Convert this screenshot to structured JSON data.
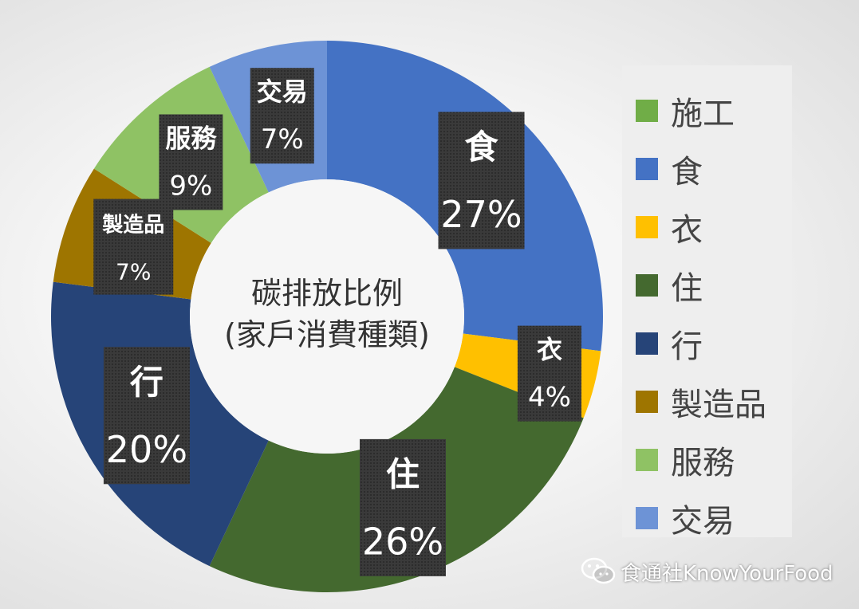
{
  "chart_data": {
    "type": "pie",
    "variant": "donut",
    "title": "碳排放比例\n(家戶消費種類)",
    "categories": [
      "施工",
      "食",
      "衣",
      "住",
      "行",
      "製造品",
      "服務",
      "交易"
    ],
    "values": [
      0,
      27,
      4,
      26,
      20,
      7,
      9,
      7
    ],
    "value_labels": [
      "",
      "27%",
      "4%",
      "26%",
      "20%",
      "7%",
      "9%",
      "7%"
    ],
    "colors": [
      "#70ad47",
      "#4472c4",
      "#ffc000",
      "#44692f",
      "#264478",
      "#9e7500",
      "#8fc264",
      "#6d93d6"
    ],
    "legend_position": "right"
  },
  "legend": {
    "items": [
      {
        "label": "施工",
        "color": "#70ad47"
      },
      {
        "label": "食",
        "color": "#4472c4"
      },
      {
        "label": "衣",
        "color": "#ffc000"
      },
      {
        "label": "住",
        "color": "#44692f"
      },
      {
        "label": "行",
        "color": "#264478"
      },
      {
        "label": "製造品",
        "color": "#9e7500"
      },
      {
        "label": "服務",
        "color": "#8fc264"
      },
      {
        "label": "交易",
        "color": "#6d93d6"
      }
    ]
  },
  "watermark": {
    "text": "食通社KnowYourFood",
    "icon": "wechat-icon"
  }
}
